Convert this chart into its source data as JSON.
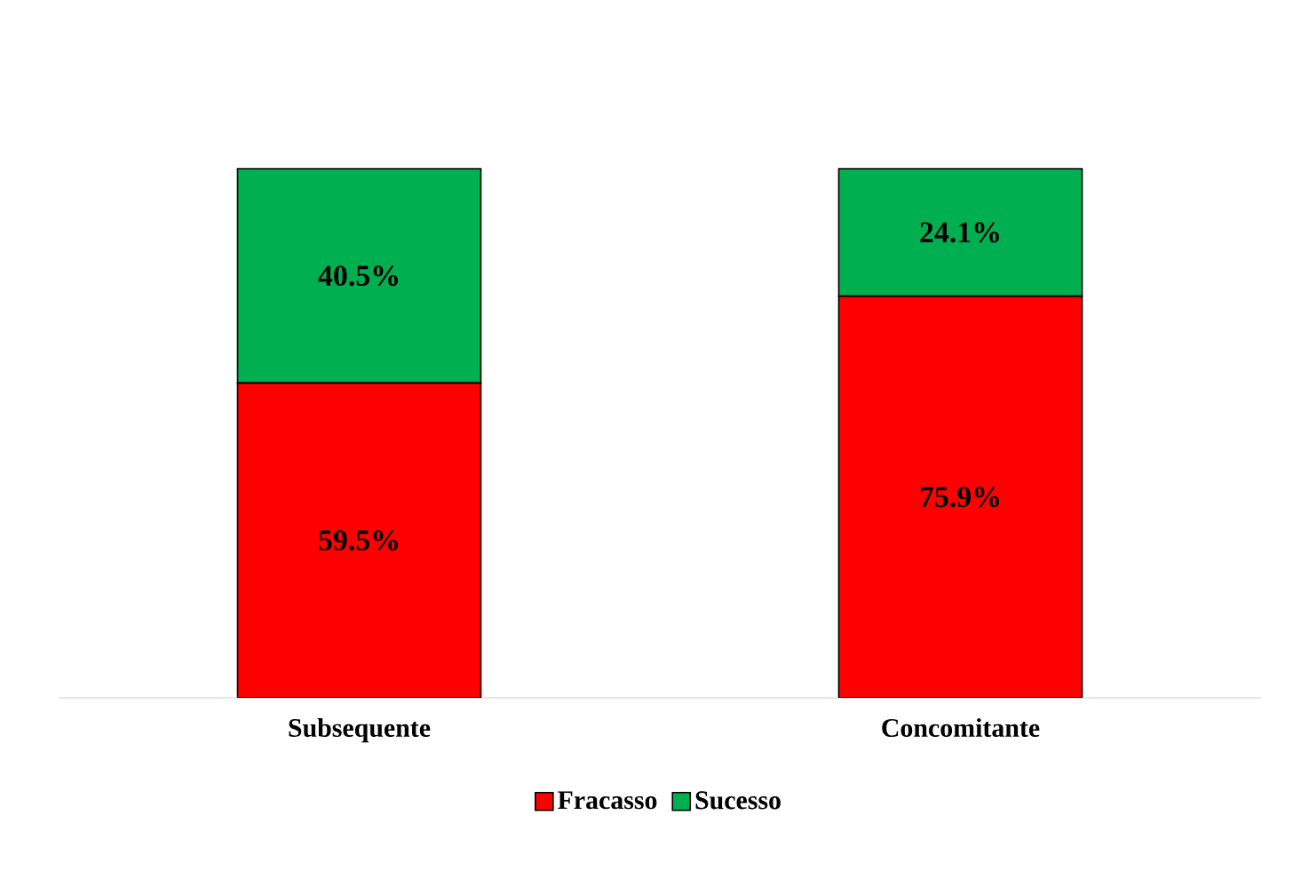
{
  "chart_data": {
    "type": "bar",
    "stacked": true,
    "categories": [
      "Subsequente",
      "Concomitante"
    ],
    "series": [
      {
        "name": "Fracasso",
        "color": "#ff0000",
        "values": [
          59.5,
          75.9
        ],
        "value_labels": [
          "59.5%",
          "75.9%"
        ]
      },
      {
        "name": "Sucesso",
        "color": "#00b050",
        "values": [
          40.5,
          24.1
        ],
        "value_labels": [
          "40.5%",
          "24.1%"
        ]
      }
    ],
    "legend": "bottom"
  }
}
